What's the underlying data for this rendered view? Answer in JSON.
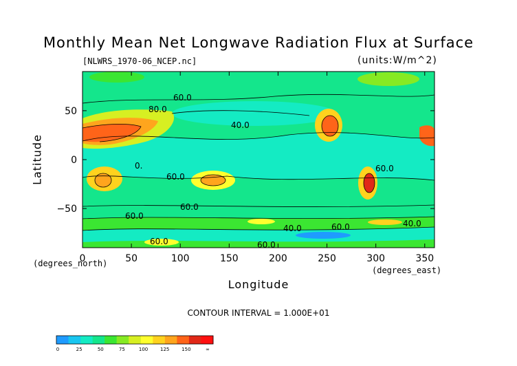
{
  "chart_data": {
    "type": "heatmap",
    "title": "Monthly Mean Net Longwave Radiation Flux at Surface",
    "file_label": "[NLWRS_1970-06_NCEP.nc]",
    "units_label": "(units:W/m^2)",
    "xlabel": "Longitude",
    "ylabel": "Latitude",
    "x_units": "(degrees_east)",
    "y_units": "(degrees_north)",
    "xlim": [
      0,
      360
    ],
    "ylim": [
      -90,
      90
    ],
    "x_ticks": [
      0,
      50,
      100,
      150,
      200,
      250,
      300,
      350
    ],
    "y_ticks": [
      50,
      0,
      -50
    ],
    "contour_interval": "CONTOUR INTERVAL = 1.000E+01",
    "contour_labels": [
      "80.0",
      "60.0",
      "40.0",
      "0.",
      "60.0",
      "60.0",
      "60.0",
      "40.0",
      "60.0",
      "60.0",
      "40.0",
      "60.0",
      "60.0"
    ],
    "colorbar": {
      "colors": [
        "#1f9bff",
        "#19c6f0",
        "#14ebc3",
        "#14e68c",
        "#3be632",
        "#86ea23",
        "#d7ef22",
        "#ffff2e",
        "#ffd21e",
        "#ffa51d",
        "#ff6419",
        "#e12817",
        "#ff1010"
      ],
      "ticks": [
        "0",
        "25",
        "50",
        "75",
        "100",
        "125",
        "150",
        "∞"
      ]
    }
  }
}
